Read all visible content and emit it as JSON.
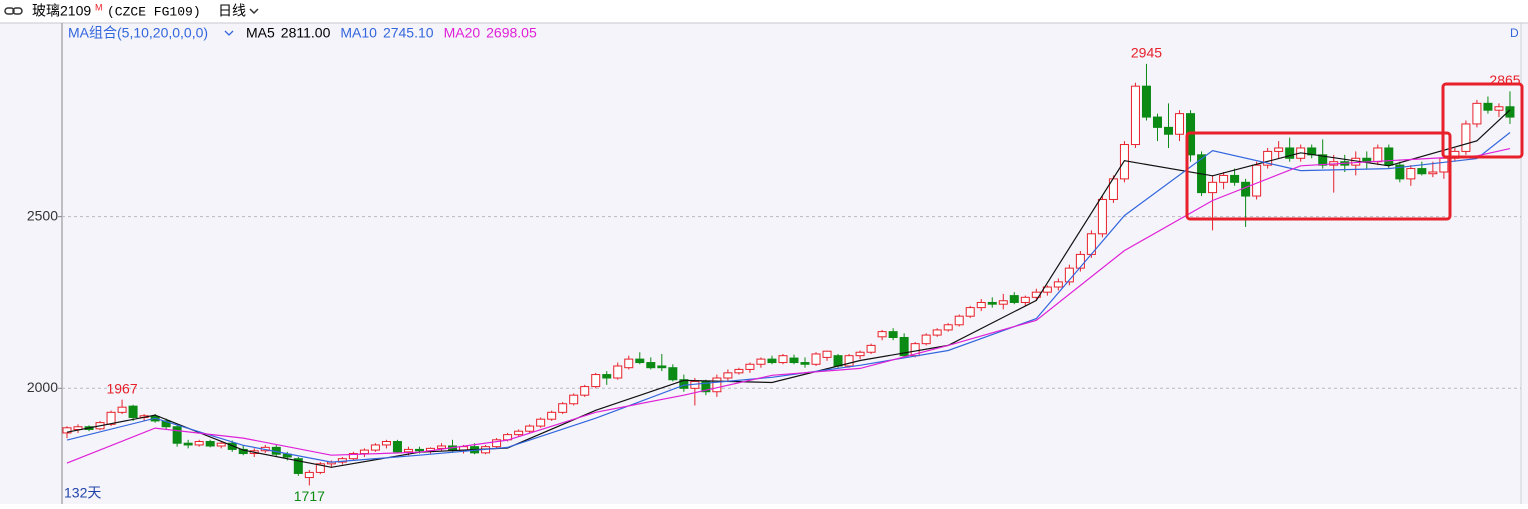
{
  "header": {
    "symbol": "玻璃2109",
    "badge": "M",
    "code": "(CZCE FG109)",
    "period": "日线"
  },
  "chart_data": {
    "type": "candlestick",
    "indicator": "MA组合(5,10,20,0,0,0)",
    "days_label": "132天",
    "corner_label": "D",
    "ylim": [
      1663,
      3064
    ],
    "yticks": [
      2000,
      2500
    ],
    "grid": true,
    "up_color": "#e8202a",
    "down_color": "#0b8a14",
    "open": [
      1870,
      1880,
      1888,
      1882,
      1895,
      1930,
      1948,
      1915,
      1918,
      1905,
      1888,
      1840,
      1835,
      1845,
      1832,
      1840,
      1822,
      1810,
      1818,
      1828,
      1808,
      1795,
      1740,
      1755,
      1780,
      1785,
      1795,
      1810,
      1820,
      1835,
      1845,
      1815,
      1822,
      1818,
      1825,
      1832,
      1820,
      1830,
      1812,
      1830,
      1850,
      1865,
      1875,
      1890,
      1910,
      1930,
      1955,
      1980,
      2005,
      2040,
      2030,
      2060,
      2085,
      2075,
      2065,
      2060,
      2025,
      2000,
      2020,
      1990,
      2030,
      2045,
      2055,
      2070,
      2085,
      2075,
      2088,
      2075,
      2070,
      2090,
      2095,
      2065,
      2095,
      2105,
      2150,
      2165,
      2148,
      2095,
      2130,
      2155,
      2170,
      2185,
      2210,
      2235,
      2250,
      2245,
      2270,
      2250,
      2265,
      2280,
      2295,
      2310,
      2350,
      2390,
      2450,
      2550,
      2610,
      2710,
      2880,
      2790,
      2760,
      2740,
      2800,
      2680,
      2570,
      2600,
      2620,
      2600,
      2560,
      2650,
      2690,
      2700,
      2670,
      2700,
      2680,
      2650,
      2660,
      2650,
      2670,
      2660,
      2700,
      2650,
      2610,
      2640,
      2625,
      2630,
      2670,
      2690,
      2770,
      2830,
      2810,
      2820
    ],
    "high": [
      1890,
      1895,
      1892,
      1905,
      1935,
      1967,
      1952,
      1925,
      1925,
      1912,
      1895,
      1850,
      1850,
      1850,
      1845,
      1848,
      1835,
      1825,
      1835,
      1835,
      1815,
      1800,
      1762,
      1785,
      1790,
      1800,
      1815,
      1825,
      1840,
      1850,
      1850,
      1830,
      1830,
      1828,
      1840,
      1850,
      1835,
      1840,
      1835,
      1855,
      1870,
      1880,
      1895,
      1915,
      1935,
      1960,
      1985,
      2010,
      2045,
      2050,
      2075,
      2095,
      2105,
      2090,
      2100,
      2070,
      2040,
      2030,
      2025,
      2040,
      2055,
      2060,
      2075,
      2090,
      2095,
      2100,
      2098,
      2090,
      2105,
      2110,
      2100,
      2100,
      2110,
      2130,
      2170,
      2175,
      2160,
      2135,
      2160,
      2175,
      2190,
      2215,
      2240,
      2260,
      2265,
      2275,
      2280,
      2270,
      2290,
      2300,
      2320,
      2360,
      2400,
      2460,
      2560,
      2620,
      2720,
      2890,
      2945,
      2800,
      2830,
      2810,
      2810,
      2690,
      2620,
      2630,
      2640,
      2610,
      2660,
      2700,
      2720,
      2730,
      2710,
      2710,
      2725,
      2680,
      2680,
      2690,
      2690,
      2710,
      2710,
      2660,
      2650,
      2660,
      2660,
      2680,
      2700,
      2780,
      2840,
      2850,
      2830,
      2865
    ],
    "low": [
      1855,
      1870,
      1875,
      1878,
      1890,
      1925,
      1905,
      1905,
      1900,
      1880,
      1830,
      1825,
      1830,
      1828,
      1825,
      1815,
      1805,
      1800,
      1812,
      1800,
      1790,
      1745,
      1717,
      1750,
      1770,
      1778,
      1790,
      1800,
      1815,
      1825,
      1810,
      1805,
      1810,
      1810,
      1818,
      1815,
      1810,
      1808,
      1808,
      1825,
      1845,
      1860,
      1870,
      1885,
      1905,
      1925,
      1950,
      1975,
      2000,
      2010,
      2025,
      2055,
      2070,
      2055,
      2050,
      2020,
      1990,
      1950,
      1980,
      1975,
      2020,
      2040,
      2045,
      2060,
      2070,
      2070,
      2070,
      2060,
      2065,
      2080,
      2060,
      2060,
      2085,
      2100,
      2140,
      2140,
      2090,
      2090,
      2125,
      2150,
      2165,
      2180,
      2205,
      2225,
      2235,
      2230,
      2245,
      2240,
      2255,
      2270,
      2285,
      2300,
      2340,
      2380,
      2440,
      2540,
      2600,
      2700,
      2780,
      2720,
      2700,
      2720,
      2660,
      2560,
      2460,
      2580,
      2590,
      2470,
      2550,
      2640,
      2670,
      2660,
      2660,
      2670,
      2640,
      2570,
      2630,
      2620,
      2640,
      2650,
      2640,
      2600,
      2590,
      2620,
      2615,
      2610,
      2660,
      2680,
      2760,
      2800,
      2790,
      2770
    ],
    "close": [
      1885,
      1888,
      1880,
      1900,
      1930,
      1945,
      1915,
      1920,
      1905,
      1888,
      1840,
      1835,
      1845,
      1832,
      1840,
      1822,
      1810,
      1818,
      1828,
      1808,
      1800,
      1752,
      1755,
      1780,
      1785,
      1795,
      1810,
      1820,
      1835,
      1845,
      1815,
      1822,
      1818,
      1825,
      1832,
      1820,
      1830,
      1812,
      1830,
      1850,
      1865,
      1875,
      1890,
      1910,
      1930,
      1955,
      1980,
      2005,
      2040,
      2030,
      2065,
      2085,
      2075,
      2060,
      2060,
      2025,
      2000,
      2020,
      1990,
      2030,
      2045,
      2055,
      2070,
      2085,
      2075,
      2095,
      2075,
      2070,
      2100,
      2108,
      2065,
      2095,
      2105,
      2125,
      2165,
      2148,
      2095,
      2130,
      2155,
      2170,
      2185,
      2210,
      2235,
      2250,
      2245,
      2255,
      2250,
      2265,
      2280,
      2295,
      2310,
      2350,
      2390,
      2450,
      2550,
      2610,
      2710,
      2880,
      2790,
      2760,
      2740,
      2800,
      2680,
      2570,
      2600,
      2620,
      2600,
      2560,
      2650,
      2690,
      2700,
      2670,
      2700,
      2680,
      2650,
      2660,
      2650,
      2670,
      2660,
      2700,
      2650,
      2610,
      2640,
      2625,
      2630,
      2670,
      2690,
      2770,
      2830,
      2810,
      2820,
      2790
    ],
    "series": [
      {
        "name": "MA5",
        "last_label": "2811.00",
        "color": "#111111",
        "x": [
          0,
          8,
          16,
          24,
          32,
          40,
          48,
          56,
          64,
          72,
          80,
          88,
          96,
          104,
          112,
          120,
          128,
          131
        ],
        "values": [
          1872,
          1922,
          1820,
          1770,
          1814,
          1826,
          1936,
          2023,
          2017,
          2081,
          2125,
          2256,
          2663,
          2619,
          2686,
          2648,
          2721,
          2811
        ]
      },
      {
        "name": "MA10",
        "last_label": "2745.10",
        "color": "#3366dd",
        "x": [
          0,
          8,
          16,
          24,
          32,
          40,
          48,
          56,
          64,
          72,
          80,
          88,
          96,
          104,
          112,
          120,
          128,
          131
        ],
        "values": [
          1849,
          1913,
          1834,
          1785,
          1805,
          1828,
          1913,
          2009,
          2032,
          2067,
          2110,
          2203,
          2503,
          2692,
          2634,
          2640,
          2669,
          2745.1
        ]
      },
      {
        "name": "MA20",
        "last_label": "2698.05",
        "color": "#e020d8",
        "x": [
          0,
          8,
          16,
          24,
          32,
          40,
          48,
          56,
          64,
          72,
          80,
          88,
          96,
          104,
          112,
          120,
          128,
          131
        ],
        "values": [
          1782,
          1884,
          1855,
          1805,
          1814,
          1849,
          1930,
          1980,
          2038,
          2058,
          2125,
          2198,
          2401,
          2547,
          2648,
          2663,
          2677,
          2698.05
        ]
      }
    ],
    "annotations": [
      {
        "index": 5,
        "text": "1967"
      },
      {
        "index": 22,
        "text": "1717"
      },
      {
        "index": 98,
        "text": "2945"
      },
      {
        "index": 131,
        "text": "2865"
      }
    ]
  }
}
